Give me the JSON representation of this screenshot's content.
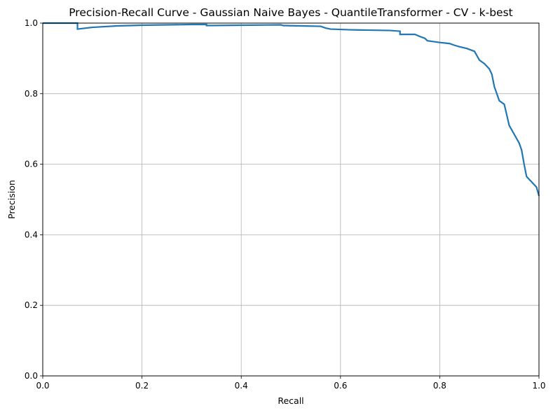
{
  "chart_data": {
    "type": "line",
    "title": "Precision-Recall Curve - Gaussian Naive Bayes - QuantileTransformer - CV - k-best",
    "xlabel": "Recall",
    "ylabel": "Precision",
    "xlim": [
      0.0,
      1.0
    ],
    "ylim": [
      0.0,
      1.0
    ],
    "xticks": [
      "0.0",
      "0.2",
      "0.4",
      "0.6",
      "0.8",
      "1.0"
    ],
    "yticks": [
      "0.0",
      "0.2",
      "0.4",
      "0.6",
      "0.8",
      "1.0"
    ],
    "grid": true,
    "series_color": "#1f77b4",
    "series": [
      {
        "points": [
          [
            0.0,
            1.0
          ],
          [
            0.07,
            1.0
          ],
          [
            0.07,
            0.983
          ],
          [
            0.1,
            0.988
          ],
          [
            0.15,
            0.992
          ],
          [
            0.2,
            0.994
          ],
          [
            0.25,
            0.995
          ],
          [
            0.3,
            0.996
          ],
          [
            0.33,
            0.996
          ],
          [
            0.33,
            0.993
          ],
          [
            0.4,
            0.994
          ],
          [
            0.48,
            0.995
          ],
          [
            0.485,
            0.993
          ],
          [
            0.52,
            0.992
          ],
          [
            0.56,
            0.991
          ],
          [
            0.57,
            0.986
          ],
          [
            0.58,
            0.983
          ],
          [
            0.62,
            0.981
          ],
          [
            0.66,
            0.98
          ],
          [
            0.7,
            0.979
          ],
          [
            0.72,
            0.977
          ],
          [
            0.72,
            0.968
          ],
          [
            0.75,
            0.968
          ],
          [
            0.76,
            0.962
          ],
          [
            0.77,
            0.957
          ],
          [
            0.775,
            0.95
          ],
          [
            0.8,
            0.945
          ],
          [
            0.82,
            0.942
          ],
          [
            0.83,
            0.937
          ],
          [
            0.84,
            0.933
          ],
          [
            0.855,
            0.928
          ],
          [
            0.87,
            0.92
          ],
          [
            0.88,
            0.895
          ],
          [
            0.89,
            0.885
          ],
          [
            0.9,
            0.87
          ],
          [
            0.905,
            0.855
          ],
          [
            0.91,
            0.82
          ],
          [
            0.915,
            0.8
          ],
          [
            0.92,
            0.78
          ],
          [
            0.93,
            0.77
          ],
          [
            0.935,
            0.74
          ],
          [
            0.94,
            0.71
          ],
          [
            0.95,
            0.685
          ],
          [
            0.96,
            0.66
          ],
          [
            0.965,
            0.64
          ],
          [
            0.97,
            0.6
          ],
          [
            0.975,
            0.565
          ],
          [
            0.985,
            0.55
          ],
          [
            0.995,
            0.535
          ],
          [
            1.0,
            0.51
          ]
        ]
      }
    ]
  }
}
